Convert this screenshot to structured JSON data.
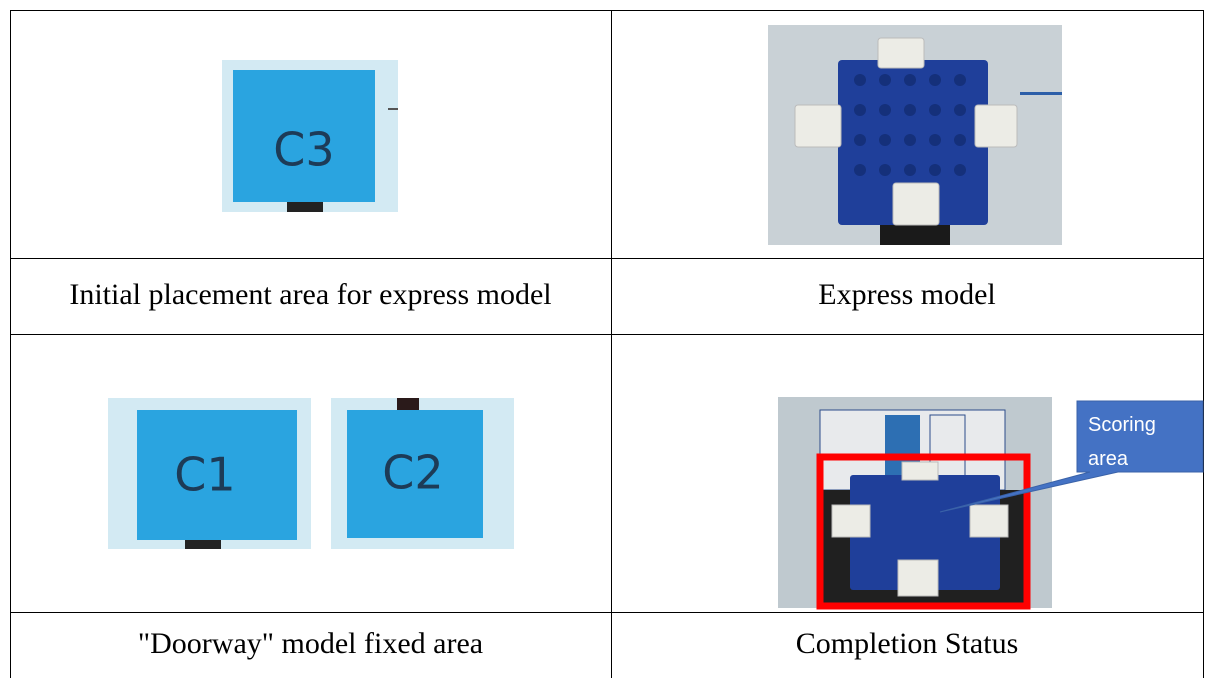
{
  "images": {
    "c3_tile": "C3",
    "c1_tile": "C1",
    "c2_tile": "C2",
    "callout": "Scoring area"
  },
  "table": {
    "rows": [
      [
        "Initial placement area for express model",
        "Express model"
      ],
      [
        "\"Doorway\" model fixed area",
        "Completion Status"
      ]
    ]
  }
}
